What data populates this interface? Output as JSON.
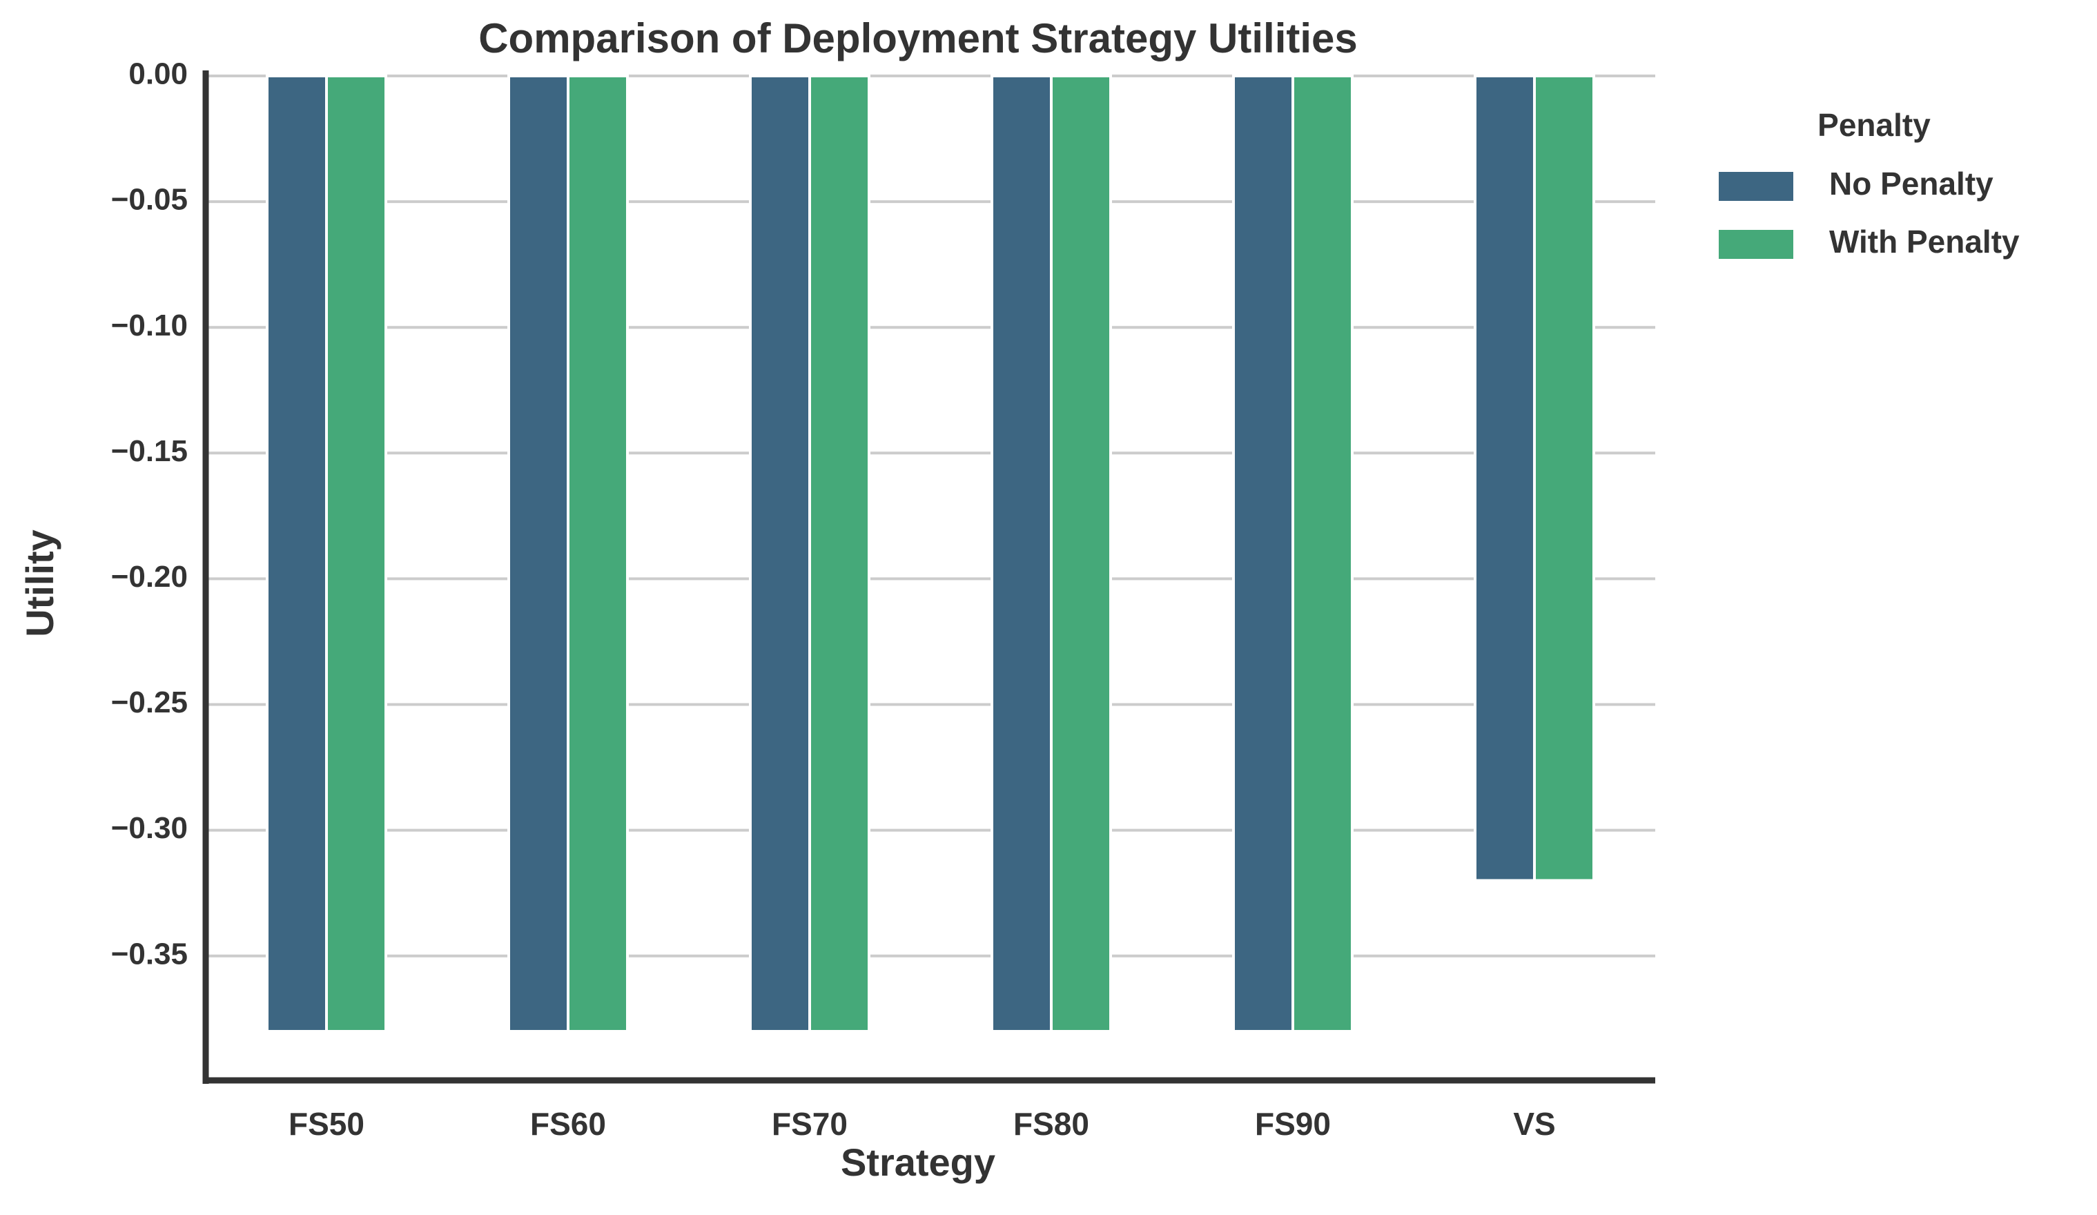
{
  "chart_data": {
    "type": "bar",
    "title": "Comparison of Deployment Strategy Utilities",
    "xlabel": "Strategy",
    "ylabel": "Utility",
    "categories": [
      "FS50",
      "FS60",
      "FS70",
      "FS80",
      "FS90",
      "VS"
    ],
    "series": [
      {
        "name": "No Penalty",
        "color": "#3d6682",
        "values": [
          -0.38,
          -0.38,
          -0.38,
          -0.38,
          -0.38,
          -0.32
        ]
      },
      {
        "name": "With Penalty",
        "color": "#45a979",
        "values": [
          -0.38,
          -0.38,
          -0.38,
          -0.38,
          -0.38,
          -0.32
        ]
      }
    ],
    "ylim": [
      -0.3995,
      0.0
    ],
    "yticks": [
      0.0,
      -0.05,
      -0.1,
      -0.15,
      -0.2,
      -0.25,
      -0.3,
      -0.35
    ],
    "ytick_labels": [
      "0.00",
      "−0.05",
      "−0.10",
      "−0.15",
      "−0.20",
      "−0.25",
      "−0.30",
      "−0.35"
    ],
    "grid": "y",
    "legend": {
      "title": "Penalty",
      "position": "outside-right-top"
    }
  }
}
